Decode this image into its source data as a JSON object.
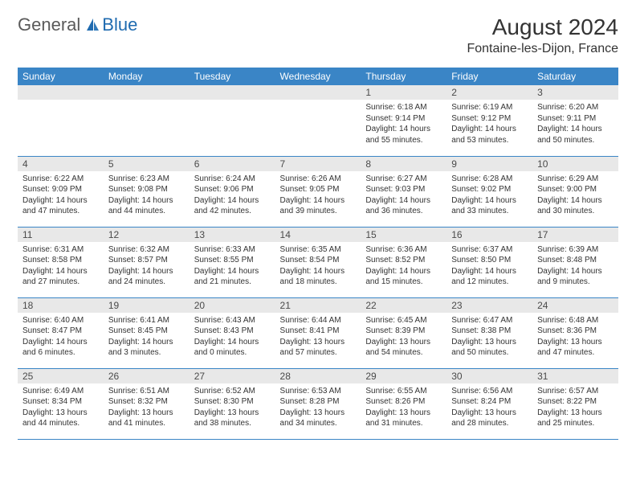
{
  "logo": {
    "general": "General",
    "blue": "Blue"
  },
  "header": {
    "monthTitle": "August 2024",
    "location": "Fontaine-les-Dijon, France"
  },
  "colors": {
    "headerBar": "#3a85c6",
    "headerText": "#ffffff",
    "dayNumBg": "#e8e8e8",
    "text": "#333333",
    "borderBottom": "#3a85c6",
    "logoGeneral": "#5a5a5a",
    "logoBlue": "#1f6bb0"
  },
  "typography": {
    "monthTitleFontSize": 28,
    "locationFontSize": 16,
    "dayHeaderFontSize": 12,
    "dayNumFontSize": 12,
    "dayInfoFontSize": 10
  },
  "calendar": {
    "dayNames": [
      "Sunday",
      "Monday",
      "Tuesday",
      "Wednesday",
      "Thursday",
      "Friday",
      "Saturday"
    ],
    "weeks": [
      [
        null,
        null,
        null,
        null,
        {
          "num": "1",
          "sunrise": "Sunrise: 6:18 AM",
          "sunset": "Sunset: 9:14 PM",
          "daylight": "Daylight: 14 hours and 55 minutes."
        },
        {
          "num": "2",
          "sunrise": "Sunrise: 6:19 AM",
          "sunset": "Sunset: 9:12 PM",
          "daylight": "Daylight: 14 hours and 53 minutes."
        },
        {
          "num": "3",
          "sunrise": "Sunrise: 6:20 AM",
          "sunset": "Sunset: 9:11 PM",
          "daylight": "Daylight: 14 hours and 50 minutes."
        }
      ],
      [
        {
          "num": "4",
          "sunrise": "Sunrise: 6:22 AM",
          "sunset": "Sunset: 9:09 PM",
          "daylight": "Daylight: 14 hours and 47 minutes."
        },
        {
          "num": "5",
          "sunrise": "Sunrise: 6:23 AM",
          "sunset": "Sunset: 9:08 PM",
          "daylight": "Daylight: 14 hours and 44 minutes."
        },
        {
          "num": "6",
          "sunrise": "Sunrise: 6:24 AM",
          "sunset": "Sunset: 9:06 PM",
          "daylight": "Daylight: 14 hours and 42 minutes."
        },
        {
          "num": "7",
          "sunrise": "Sunrise: 6:26 AM",
          "sunset": "Sunset: 9:05 PM",
          "daylight": "Daylight: 14 hours and 39 minutes."
        },
        {
          "num": "8",
          "sunrise": "Sunrise: 6:27 AM",
          "sunset": "Sunset: 9:03 PM",
          "daylight": "Daylight: 14 hours and 36 minutes."
        },
        {
          "num": "9",
          "sunrise": "Sunrise: 6:28 AM",
          "sunset": "Sunset: 9:02 PM",
          "daylight": "Daylight: 14 hours and 33 minutes."
        },
        {
          "num": "10",
          "sunrise": "Sunrise: 6:29 AM",
          "sunset": "Sunset: 9:00 PM",
          "daylight": "Daylight: 14 hours and 30 minutes."
        }
      ],
      [
        {
          "num": "11",
          "sunrise": "Sunrise: 6:31 AM",
          "sunset": "Sunset: 8:58 PM",
          "daylight": "Daylight: 14 hours and 27 minutes."
        },
        {
          "num": "12",
          "sunrise": "Sunrise: 6:32 AM",
          "sunset": "Sunset: 8:57 PM",
          "daylight": "Daylight: 14 hours and 24 minutes."
        },
        {
          "num": "13",
          "sunrise": "Sunrise: 6:33 AM",
          "sunset": "Sunset: 8:55 PM",
          "daylight": "Daylight: 14 hours and 21 minutes."
        },
        {
          "num": "14",
          "sunrise": "Sunrise: 6:35 AM",
          "sunset": "Sunset: 8:54 PM",
          "daylight": "Daylight: 14 hours and 18 minutes."
        },
        {
          "num": "15",
          "sunrise": "Sunrise: 6:36 AM",
          "sunset": "Sunset: 8:52 PM",
          "daylight": "Daylight: 14 hours and 15 minutes."
        },
        {
          "num": "16",
          "sunrise": "Sunrise: 6:37 AM",
          "sunset": "Sunset: 8:50 PM",
          "daylight": "Daylight: 14 hours and 12 minutes."
        },
        {
          "num": "17",
          "sunrise": "Sunrise: 6:39 AM",
          "sunset": "Sunset: 8:48 PM",
          "daylight": "Daylight: 14 hours and 9 minutes."
        }
      ],
      [
        {
          "num": "18",
          "sunrise": "Sunrise: 6:40 AM",
          "sunset": "Sunset: 8:47 PM",
          "daylight": "Daylight: 14 hours and 6 minutes."
        },
        {
          "num": "19",
          "sunrise": "Sunrise: 6:41 AM",
          "sunset": "Sunset: 8:45 PM",
          "daylight": "Daylight: 14 hours and 3 minutes."
        },
        {
          "num": "20",
          "sunrise": "Sunrise: 6:43 AM",
          "sunset": "Sunset: 8:43 PM",
          "daylight": "Daylight: 14 hours and 0 minutes."
        },
        {
          "num": "21",
          "sunrise": "Sunrise: 6:44 AM",
          "sunset": "Sunset: 8:41 PM",
          "daylight": "Daylight: 13 hours and 57 minutes."
        },
        {
          "num": "22",
          "sunrise": "Sunrise: 6:45 AM",
          "sunset": "Sunset: 8:39 PM",
          "daylight": "Daylight: 13 hours and 54 minutes."
        },
        {
          "num": "23",
          "sunrise": "Sunrise: 6:47 AM",
          "sunset": "Sunset: 8:38 PM",
          "daylight": "Daylight: 13 hours and 50 minutes."
        },
        {
          "num": "24",
          "sunrise": "Sunrise: 6:48 AM",
          "sunset": "Sunset: 8:36 PM",
          "daylight": "Daylight: 13 hours and 47 minutes."
        }
      ],
      [
        {
          "num": "25",
          "sunrise": "Sunrise: 6:49 AM",
          "sunset": "Sunset: 8:34 PM",
          "daylight": "Daylight: 13 hours and 44 minutes."
        },
        {
          "num": "26",
          "sunrise": "Sunrise: 6:51 AM",
          "sunset": "Sunset: 8:32 PM",
          "daylight": "Daylight: 13 hours and 41 minutes."
        },
        {
          "num": "27",
          "sunrise": "Sunrise: 6:52 AM",
          "sunset": "Sunset: 8:30 PM",
          "daylight": "Daylight: 13 hours and 38 minutes."
        },
        {
          "num": "28",
          "sunrise": "Sunrise: 6:53 AM",
          "sunset": "Sunset: 8:28 PM",
          "daylight": "Daylight: 13 hours and 34 minutes."
        },
        {
          "num": "29",
          "sunrise": "Sunrise: 6:55 AM",
          "sunset": "Sunset: 8:26 PM",
          "daylight": "Daylight: 13 hours and 31 minutes."
        },
        {
          "num": "30",
          "sunrise": "Sunrise: 6:56 AM",
          "sunset": "Sunset: 8:24 PM",
          "daylight": "Daylight: 13 hours and 28 minutes."
        },
        {
          "num": "31",
          "sunrise": "Sunrise: 6:57 AM",
          "sunset": "Sunset: 8:22 PM",
          "daylight": "Daylight: 13 hours and 25 minutes."
        }
      ]
    ]
  }
}
